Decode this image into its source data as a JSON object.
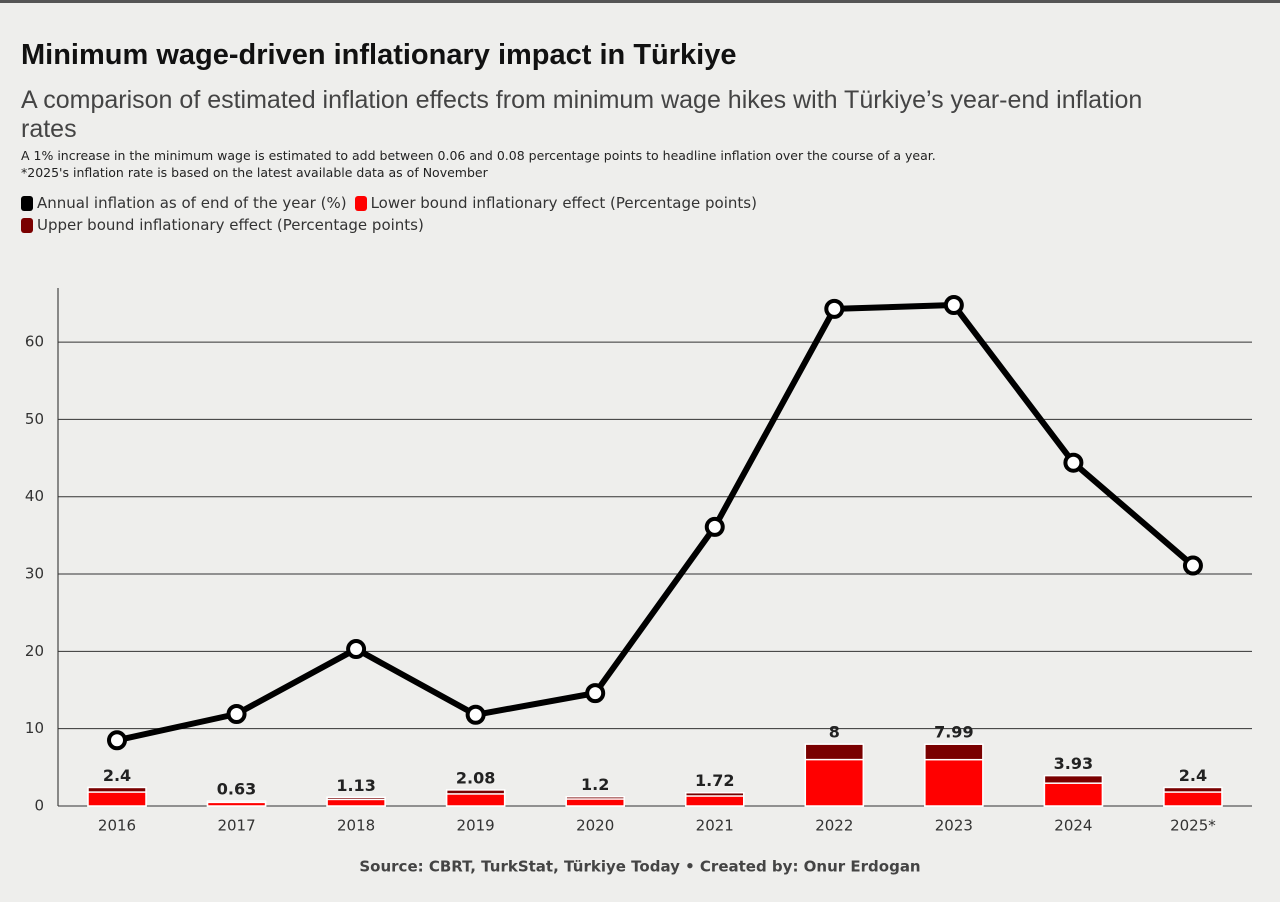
{
  "chart_data": {
    "type": "combo",
    "title": "Minimum wage-driven inflationary impact in Türkiye",
    "subtitle": "A comparison of estimated inflation effects from minimum wage hikes with Türkiye’s year-end inflation rates",
    "notes": [
      "A 1% increase in the minimum wage is estimated to add between 0.06 and 0.08 percentage points to headline inflation over the course of a year.",
      "*2025's inflation rate is based on the latest available data as of November"
    ],
    "source": "Source: CBRT, TurkStat, Türkiye Today • Created by: Onur Erdogan",
    "categories": [
      "2016",
      "2017",
      "2018",
      "2019",
      "2020",
      "2021",
      "2022",
      "2023",
      "2024",
      "2025*"
    ],
    "series": [
      {
        "name": "Annual inflation as of end of the year (%)",
        "type": "line",
        "color": "#000000",
        "values": [
          8.5,
          11.9,
          20.3,
          11.8,
          14.6,
          36.1,
          64.3,
          64.8,
          44.4,
          31.1
        ]
      },
      {
        "name": "Lower bound inflationary effect (Percentage points)",
        "type": "bar",
        "color": "#ff0000",
        "values": [
          1.8,
          0.47,
          0.85,
          1.56,
          0.9,
          1.29,
          6,
          5.99,
          2.95,
          1.8
        ]
      },
      {
        "name": "Upper bound inflationary effect (Percentage points)",
        "type": "bar",
        "color": "#7a0000",
        "labels": true,
        "values": [
          2.4,
          0.63,
          1.13,
          2.08,
          1.2,
          1.72,
          8,
          7.99,
          3.93,
          2.4
        ]
      }
    ],
    "ylim": [
      0,
      67
    ],
    "yticks": [
      0,
      10,
      20,
      30,
      40,
      50,
      60
    ],
    "grid": true
  }
}
